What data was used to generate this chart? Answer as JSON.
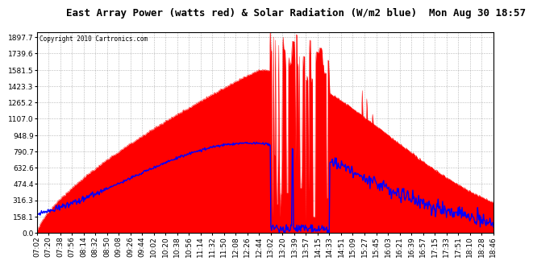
{
  "title": "East Array Power (watts red) & Solar Radiation (W/m2 blue)  Mon Aug 30 18:57",
  "copyright": "Copyright 2010 Cartronics.com",
  "background_color": "#ffffff",
  "plot_bg_color": "#ffffff",
  "grid_color": "#888888",
  "ytick_values": [
    0.0,
    158.1,
    316.3,
    474.4,
    632.6,
    790.7,
    948.9,
    1107.0,
    1265.2,
    1423.3,
    1581.5,
    1739.6,
    1897.7
  ],
  "ylim": [
    0,
    1950
  ],
  "title_fontsize": 9,
  "tick_fontsize": 6.5,
  "xtick_labels": [
    "07:02",
    "07:20",
    "07:38",
    "07:56",
    "08:14",
    "08:32",
    "08:50",
    "09:08",
    "09:26",
    "09:44",
    "10:02",
    "10:20",
    "10:38",
    "10:56",
    "11:14",
    "11:32",
    "11:50",
    "12:08",
    "12:26",
    "12:44",
    "13:02",
    "13:20",
    "13:39",
    "13:57",
    "14:15",
    "14:33",
    "14:51",
    "15:09",
    "15:27",
    "15:45",
    "16:03",
    "16:21",
    "16:39",
    "16:57",
    "17:15",
    "17:33",
    "17:51",
    "18:10",
    "18:28",
    "18:46"
  ]
}
